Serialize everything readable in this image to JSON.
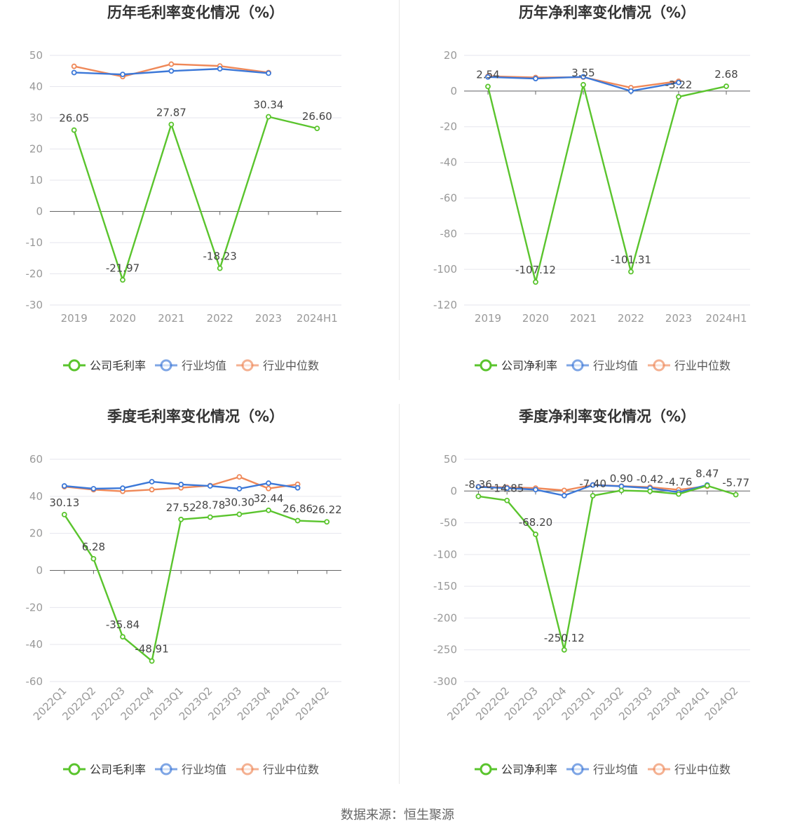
{
  "colors": {
    "company": "#5ac42d",
    "avg": "#3c78d8",
    "median": "#ef8858",
    "grid": "#e6e6ee",
    "axis": "#666666",
    "tick": "#999999",
    "label": "#444444",
    "title": "#333333"
  },
  "source": "数据来源：恒生聚源",
  "chart_data": [
    {
      "type": "line",
      "title": "历年毛利率变化情况（%）",
      "categories": [
        "2019",
        "2020",
        "2021",
        "2022",
        "2023",
        "2024H1"
      ],
      "ylim": [
        -30,
        50
      ],
      "yticks": [
        50,
        40,
        30,
        20,
        10,
        0,
        -10,
        -20,
        -30
      ],
      "rotate_x": false,
      "series": [
        {
          "name": "公司毛利率",
          "key": "company",
          "values": [
            26.05,
            -21.97,
            27.87,
            -18.23,
            30.34,
            26.6
          ],
          "labels": [
            "26.05",
            "-21.97",
            "27.87",
            "-18.23",
            "30.34",
            "26.60"
          ]
        },
        {
          "name": "行业均值",
          "key": "avg",
          "values": [
            44.5,
            43.9,
            45.0,
            45.7,
            44.3,
            null
          ]
        },
        {
          "name": "行业中位数",
          "key": "median",
          "values": [
            46.5,
            43.2,
            47.2,
            46.6,
            44.5,
            null
          ]
        }
      ]
    },
    {
      "type": "line",
      "title": "历年净利率变化情况（%）",
      "categories": [
        "2019",
        "2020",
        "2021",
        "2022",
        "2023",
        "2024H1"
      ],
      "ylim": [
        -120,
        20
      ],
      "yticks": [
        20,
        0,
        -20,
        -40,
        -60,
        -80,
        -100,
        -120
      ],
      "rotate_x": false,
      "series": [
        {
          "name": "公司净利率",
          "key": "company",
          "values": [
            2.54,
            -107.12,
            3.55,
            -101.31,
            -3.22,
            2.68
          ],
          "labels": [
            "2.54",
            "-107.12",
            "3.55",
            "-101.31",
            "-3.22",
            "2.68"
          ]
        },
        {
          "name": "行业均值",
          "key": "avg",
          "values": [
            7.9,
            7.0,
            8.0,
            0.0,
            4.8,
            null
          ]
        },
        {
          "name": "行业中位数",
          "key": "median",
          "values": [
            8.3,
            7.6,
            7.8,
            1.9,
            5.5,
            null
          ]
        }
      ]
    },
    {
      "type": "line",
      "title": "季度毛利率变化情况（%）",
      "categories": [
        "2022Q1",
        "2022Q2",
        "2022Q3",
        "2022Q4",
        "2023Q1",
        "2023Q2",
        "2023Q3",
        "2023Q4",
        "2024Q1",
        "2024Q2"
      ],
      "ylim": [
        -60,
        60
      ],
      "yticks": [
        60,
        40,
        20,
        0,
        -20,
        -40,
        -60
      ],
      "rotate_x": true,
      "series": [
        {
          "name": "公司毛利率",
          "key": "company",
          "values": [
            30.13,
            6.28,
            -35.84,
            -48.91,
            27.52,
            28.78,
            30.3,
            32.44,
            26.86,
            26.22
          ],
          "labels": [
            "30.13",
            "6.28",
            "-35.84",
            "-48.91",
            "27.52",
            "28.78",
            "30.30",
            "32.44",
            "26.86",
            "26.22"
          ]
        },
        {
          "name": "行业均值",
          "key": "avg",
          "values": [
            45.6,
            44.1,
            44.4,
            47.9,
            46.4,
            45.6,
            44.1,
            47.1,
            44.6,
            null
          ]
        },
        {
          "name": "行业中位数",
          "key": "median",
          "values": [
            45.2,
            43.6,
            42.7,
            43.6,
            44.6,
            45.8,
            50.5,
            44.2,
            46.5,
            null
          ]
        }
      ]
    },
    {
      "type": "line",
      "title": "季度净利率变化情况（%）",
      "categories": [
        "2022Q1",
        "2022Q2",
        "2022Q3",
        "2022Q4",
        "2023Q1",
        "2023Q2",
        "2023Q3",
        "2023Q4",
        "2024Q1",
        "2024Q2"
      ],
      "ylim": [
        -300,
        50
      ],
      "yticks": [
        50,
        0,
        -50,
        -100,
        -150,
        -200,
        -250,
        -300
      ],
      "rotate_x": true,
      "series": [
        {
          "name": "公司净利率",
          "key": "company",
          "values": [
            -8.36,
            -14.85,
            -68.2,
            -250.12,
            -7.4,
            0.9,
            -0.42,
            -4.76,
            8.47,
            -5.77
          ],
          "labels": [
            "-8.36",
            "-14.85",
            "-68.20",
            "-250.12",
            "-7.40",
            "0.90",
            "-0.42",
            "-4.76",
            "8.47",
            "-5.77"
          ]
        },
        {
          "name": "行业均值",
          "key": "avg",
          "values": [
            6.5,
            4.6,
            2.2,
            -7.2,
            9.5,
            7.4,
            4.6,
            -2.0,
            9.5,
            null
          ]
        },
        {
          "name": "行业中位数",
          "key": "median",
          "values": [
            7.0,
            5.8,
            4.6,
            1.0,
            9.7,
            7.8,
            6.0,
            2.0,
            7.5,
            null
          ]
        }
      ]
    }
  ]
}
